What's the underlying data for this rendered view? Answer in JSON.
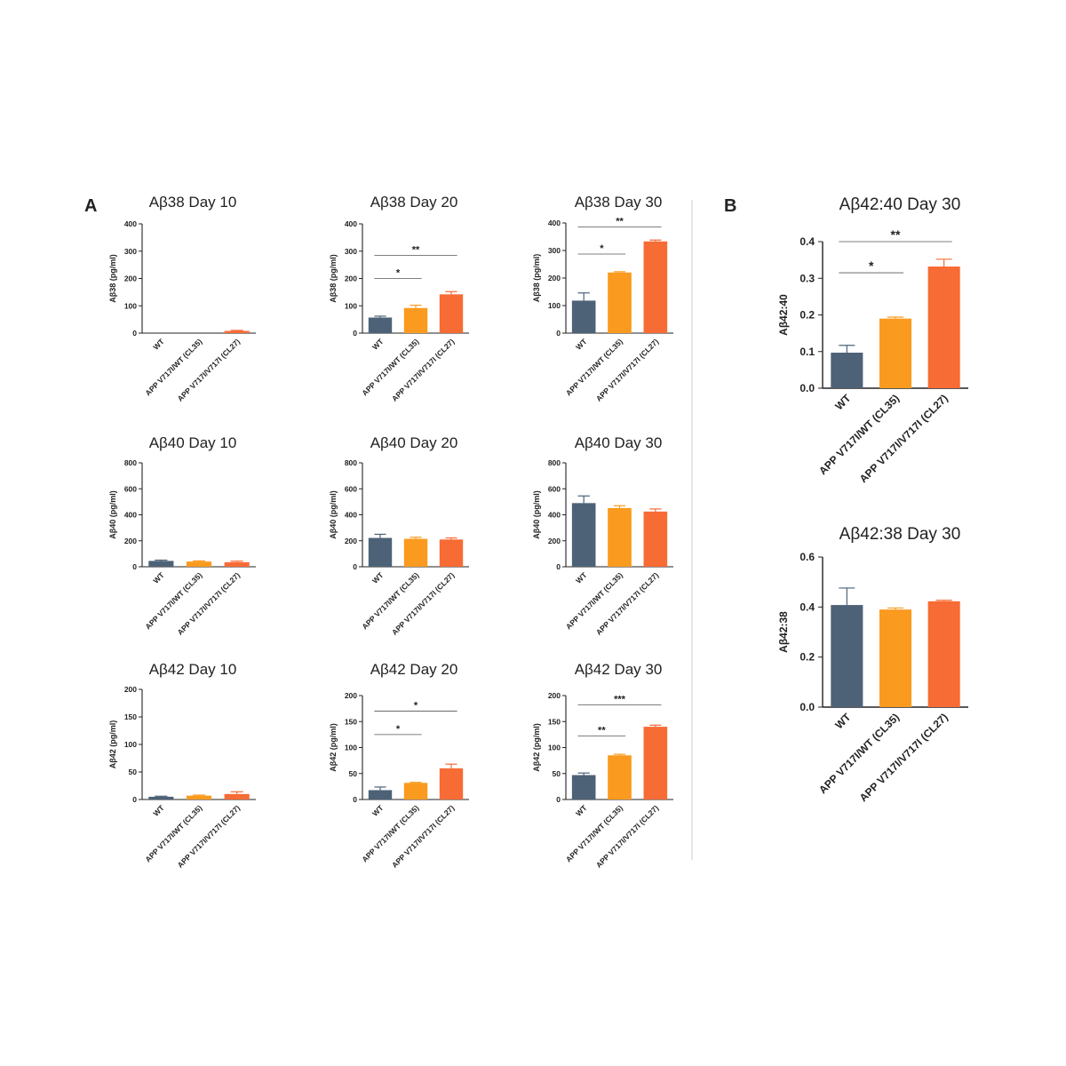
{
  "panels": {
    "a": "A",
    "b": "B"
  },
  "colors": {
    "WT": "#4d6277",
    "CL35": "#fa9a1e",
    "CL27": "#f76b35",
    "axis": "#222222",
    "divider": "#cccccc"
  },
  "chart_data": [
    {
      "id": "ab38-d10",
      "type": "bar",
      "title": "Aβ38 Day 10",
      "ylabel": "Aβ38 (pg/ml)",
      "categories": [
        "WT",
        "APP V717I/WT (CL35)",
        "APP V717I/V717I (CL27)"
      ],
      "values": [
        0,
        0,
        8
      ],
      "errors": [
        0,
        0,
        2
      ],
      "ylim": [
        0,
        400
      ],
      "yticks": [
        0,
        100,
        200,
        300,
        400
      ],
      "sig": []
    },
    {
      "id": "ab38-d20",
      "type": "bar",
      "title": "Aβ38 Day 20",
      "ylabel": "Aβ38 (pg/ml)",
      "categories": [
        "WT",
        "APP V717I/WT (CL35)",
        "APP V717I/V717I (CL27)"
      ],
      "values": [
        57,
        92,
        142
      ],
      "errors": [
        5,
        10,
        10
      ],
      "ylim": [
        0,
        400
      ],
      "yticks": [
        0,
        100,
        200,
        300,
        400
      ],
      "sig": [
        {
          "from": 0,
          "to": 1,
          "y": 200,
          "label": "*"
        },
        {
          "from": 0,
          "to": 2,
          "y": 285,
          "label": "**"
        }
      ]
    },
    {
      "id": "ab38-d30",
      "type": "bar",
      "title": "Aβ38 Day 30",
      "ylabel": "Aβ38 (pg/ml)",
      "categories": [
        "WT",
        "APP V717I/WT (CL35)",
        "APP V717I/V717I (CL27)"
      ],
      "values": [
        118,
        220,
        333
      ],
      "errors": [
        28,
        3,
        5
      ],
      "ylim": [
        0,
        400
      ],
      "yticks": [
        0,
        100,
        200,
        300,
        400
      ],
      "sig": [
        {
          "from": 0,
          "to": 1,
          "y": 287,
          "label": "*"
        },
        {
          "from": 0,
          "to": 2,
          "y": 385,
          "label": "**"
        }
      ]
    },
    {
      "id": "ab40-d10",
      "type": "bar",
      "title": "Aβ40 Day 10",
      "ylabel": "Aβ40 (pg/ml)",
      "categories": [
        "WT",
        "APP V717I/WT (CL35)",
        "APP V717I/V717I (CL27)"
      ],
      "values": [
        45,
        40,
        35
      ],
      "errors": [
        6,
        5,
        8
      ],
      "ylim": [
        0,
        800
      ],
      "yticks": [
        0,
        200,
        400,
        600,
        800
      ],
      "sig": []
    },
    {
      "id": "ab40-d20",
      "type": "bar",
      "title": "Aβ40 Day 20",
      "ylabel": "Aβ40 (pg/ml)",
      "categories": [
        "WT",
        "APP V717I/WT (CL35)",
        "APP V717I/V717I (CL27)"
      ],
      "values": [
        222,
        215,
        210
      ],
      "errors": [
        28,
        12,
        12
      ],
      "ylim": [
        0,
        800
      ],
      "yticks": [
        0,
        200,
        400,
        600,
        800
      ],
      "sig": []
    },
    {
      "id": "ab40-d30",
      "type": "bar",
      "title": "Aβ40 Day 30",
      "ylabel": "Aβ40 (pg/ml)",
      "categories": [
        "WT",
        "APP V717I/WT (CL35)",
        "APP V717I/V717I (CL27)"
      ],
      "values": [
        490,
        452,
        425
      ],
      "errors": [
        55,
        18,
        20
      ],
      "ylim": [
        0,
        800
      ],
      "yticks": [
        0,
        200,
        400,
        600,
        800
      ],
      "sig": []
    },
    {
      "id": "ab42-d10",
      "type": "bar",
      "title": "Aβ42 Day 10",
      "ylabel": "Aβ42 (pg/ml)",
      "categories": [
        "WT",
        "APP V717I/WT (CL35)",
        "APP V717I/V717I (CL27)"
      ],
      "values": [
        5,
        7,
        10
      ],
      "errors": [
        1,
        1,
        4
      ],
      "ylim": [
        0,
        200
      ],
      "yticks": [
        0,
        50,
        100,
        150,
        200
      ],
      "sig": []
    },
    {
      "id": "ab42-d20",
      "type": "bar",
      "title": "Aβ42 Day 20",
      "ylabel": "Aβ42 (pg/ml)",
      "categories": [
        "WT",
        "APP V717I/WT (CL35)",
        "APP V717I/V717I (CL27)"
      ],
      "values": [
        18,
        32,
        60
      ],
      "errors": [
        6,
        1,
        8
      ],
      "ylim": [
        0,
        200
      ],
      "yticks": [
        0,
        50,
        100,
        150,
        200
      ],
      "sig": [
        {
          "from": 0,
          "to": 1,
          "y": 125,
          "label": "*"
        },
        {
          "from": 0,
          "to": 2,
          "y": 170,
          "label": "*"
        }
      ]
    },
    {
      "id": "ab42-d30",
      "type": "bar",
      "title": "Aβ42 Day 30",
      "ylabel": "Aβ42 (pg/ml)",
      "categories": [
        "WT",
        "APP V717I/WT (CL35)",
        "APP V717I/V717I (CL27)"
      ],
      "values": [
        47,
        85,
        140
      ],
      "errors": [
        4,
        2,
        3
      ],
      "ylim": [
        0,
        200
      ],
      "yticks": [
        0,
        50,
        100,
        150,
        200
      ],
      "sig": [
        {
          "from": 0,
          "to": 1,
          "y": 122,
          "label": "**"
        },
        {
          "from": 0,
          "to": 2,
          "y": 182,
          "label": "***"
        }
      ]
    },
    {
      "id": "ratio4240",
      "type": "bar",
      "title": "Aβ42:40 Day 30",
      "ylabel": "Aβ42:40",
      "categories": [
        "WT",
        "APP V717I/WT (CL35)",
        "APP V717I/V717I (CL27)"
      ],
      "values": [
        0.097,
        0.19,
        0.332
      ],
      "errors": [
        0.02,
        0.004,
        0.02
      ],
      "ylim": [
        0,
        0.4
      ],
      "yticks": [
        0.0,
        0.1,
        0.2,
        0.3,
        0.4
      ],
      "sig": [
        {
          "from": 0,
          "to": 1,
          "y": 0.315,
          "label": "*"
        },
        {
          "from": 0,
          "to": 2,
          "y": 0.4,
          "label": "**"
        }
      ]
    },
    {
      "id": "ratio4238",
      "type": "bar",
      "title": "Aβ42:38 Day 30",
      "ylabel": "Aβ42:38",
      "categories": [
        "WT",
        "APP V717I/WT (CL35)",
        "APP V717I/V717I (CL27)"
      ],
      "values": [
        0.408,
        0.39,
        0.423
      ],
      "errors": [
        0.068,
        0.006,
        0.004
      ],
      "ylim": [
        0,
        0.6
      ],
      "yticks": [
        0.0,
        0.2,
        0.4,
        0.6
      ],
      "sig": []
    }
  ]
}
